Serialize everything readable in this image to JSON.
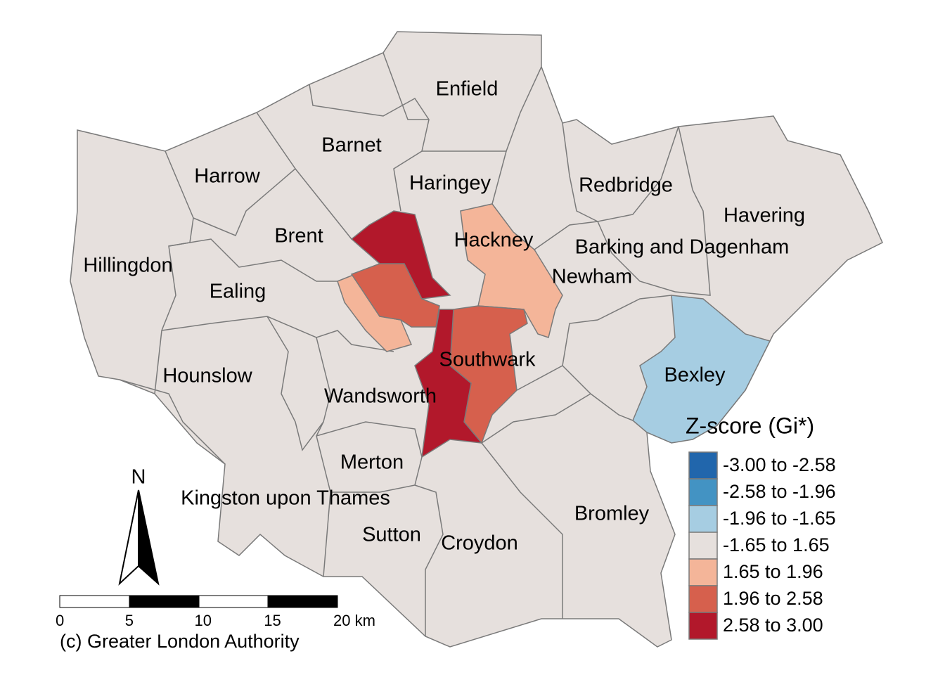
{
  "map": {
    "labels": [
      "Enfield",
      "Barnet",
      "Harrow",
      "Haringey",
      "Redbridge",
      "Havering",
      "Brent",
      "Hackney",
      "Barking and Dagenham",
      "Hillingdon",
      "Newham",
      "Ealing",
      "Southwark",
      "Hounslow",
      "Bexley",
      "Wandsworth",
      "Merton",
      "Kingston upon Thames",
      "Bromley",
      "Sutton",
      "Croydon"
    ]
  },
  "legend": {
    "title": "Z-score (Gi*)",
    "classes": [
      {
        "label": "-3.00 to -2.58",
        "color": "#2166ac"
      },
      {
        "label": "-2.58 to -1.96",
        "color": "#4393c3"
      },
      {
        "label": "-1.96 to -1.65",
        "color": "#a6cde2"
      },
      {
        "label": "-1.65 to 1.65",
        "color": "#e6e0dd"
      },
      {
        "label": "1.65 to 1.96",
        "color": "#f4b599"
      },
      {
        "label": "1.96 to 2.58",
        "color": "#d6604d"
      },
      {
        "label": "2.58 to 3.00",
        "color": "#b2182b"
      }
    ]
  },
  "north_arrow": "N",
  "scale_bar": {
    "ticks": [
      "0",
      "5",
      "10",
      "15",
      "20 km"
    ]
  },
  "credit": "(c) Greater London Authority"
}
